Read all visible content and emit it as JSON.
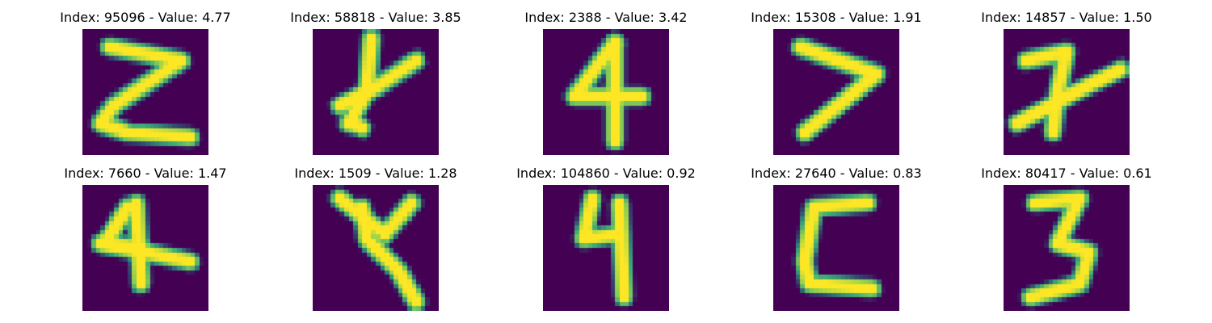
{
  "colors": {
    "background": "#440154",
    "stroke_core": "#fde725",
    "stroke_mid": "#5ec962",
    "stroke_edge": "#21918c"
  },
  "panels": [
    {
      "index": "95096",
      "value": "4.77",
      "glyph": "Z"
    },
    {
      "index": "58818",
      "value": "3.85",
      "glyph": "x-cross"
    },
    {
      "index": "2388",
      "value": "3.42",
      "glyph": "4"
    },
    {
      "index": "15308",
      "value": "1.91",
      "glyph": ">"
    },
    {
      "index": "14857",
      "value": "1.50",
      "glyph": "7-cross"
    },
    {
      "index": "7660",
      "value": "1.47",
      "glyph": "4"
    },
    {
      "index": "1509",
      "value": "1.28",
      "glyph": "x-cross"
    },
    {
      "index": "104860",
      "value": "0.92",
      "glyph": "4"
    },
    {
      "index": "27640",
      "value": "0.83",
      "glyph": "C"
    },
    {
      "index": "80417",
      "value": "0.61",
      "glyph": "3"
    }
  ],
  "labels": {
    "index_prefix": "Index: ",
    "value_prefix": " - Value: "
  }
}
